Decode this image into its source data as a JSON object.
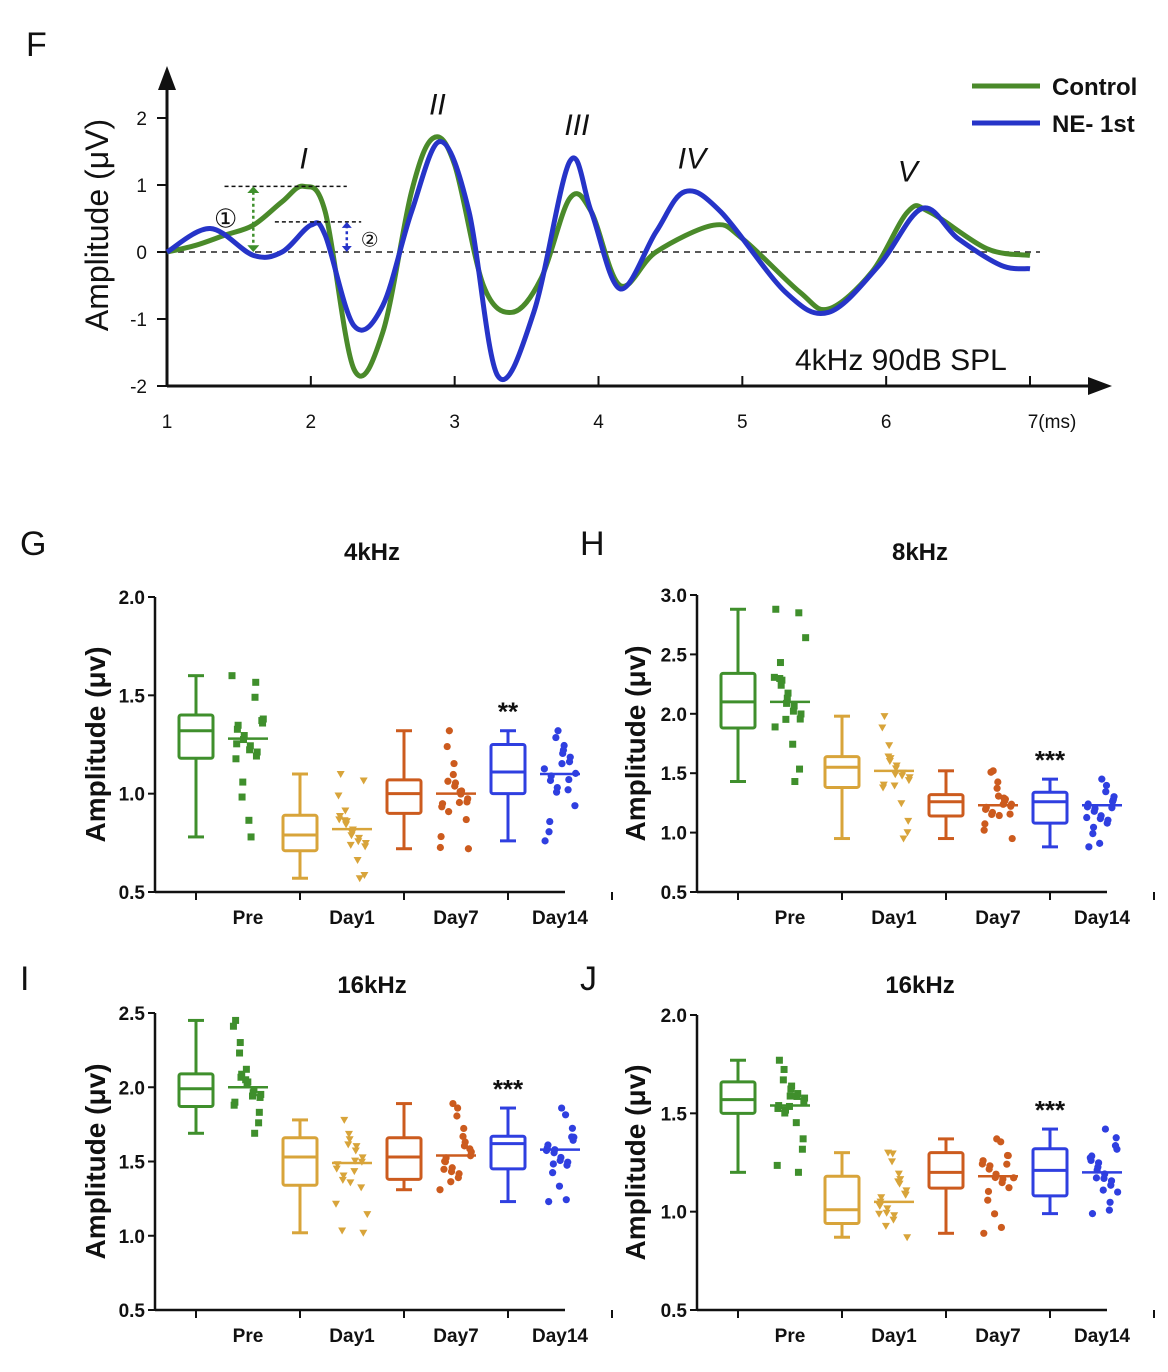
{
  "waveform": {
    "panel_letter": "F",
    "ylabel": "Amplitude (μV)",
    "x_ticks": [
      "1",
      "2",
      "3",
      "4",
      "5",
      "6",
      "7(ms)"
    ],
    "y_ticks": [
      "2",
      "1",
      "0",
      "-1",
      "-2"
    ],
    "condition_label": "4kHz  90dB SPL",
    "wave_labels": [
      "I",
      "II",
      "III",
      "IV",
      "V"
    ],
    "marker_1": "①",
    "marker_2": "②",
    "legend": [
      {
        "name": "Control",
        "color": "#4a8a2a"
      },
      {
        "name": "NE- 1st",
        "color": "#2634c8"
      }
    ],
    "chart_data": {
      "type": "line",
      "xlim": [
        1,
        7
      ],
      "ylim": [
        -2,
        2.5
      ],
      "series": [
        {
          "name": "Control",
          "color": "#4a8a2a",
          "points": [
            [
              1.0,
              0.0
            ],
            [
              1.2,
              0.1
            ],
            [
              1.4,
              0.25
            ],
            [
              1.6,
              0.4
            ],
            [
              1.8,
              0.75
            ],
            [
              1.95,
              0.98
            ],
            [
              2.1,
              0.6
            ],
            [
              2.3,
              -1.75
            ],
            [
              2.5,
              -1.2
            ],
            [
              2.7,
              0.9
            ],
            [
              2.85,
              1.7
            ],
            [
              3.0,
              1.3
            ],
            [
              3.2,
              -0.5
            ],
            [
              3.4,
              -0.9
            ],
            [
              3.6,
              -0.4
            ],
            [
              3.8,
              0.8
            ],
            [
              3.95,
              0.6
            ],
            [
              4.15,
              -0.5
            ],
            [
              4.4,
              0.0
            ],
            [
              4.8,
              0.4
            ],
            [
              5.0,
              0.2
            ],
            [
              5.4,
              -0.6
            ],
            [
              5.6,
              -0.85
            ],
            [
              5.9,
              -0.3
            ],
            [
              6.15,
              0.6
            ],
            [
              6.3,
              0.6
            ],
            [
              6.7,
              0.05
            ],
            [
              7.0,
              -0.05
            ]
          ]
        },
        {
          "name": "NE- 1st",
          "color": "#2634c8",
          "points": [
            [
              1.0,
              0.0
            ],
            [
              1.3,
              0.35
            ],
            [
              1.6,
              -0.05
            ],
            [
              1.8,
              0.0
            ],
            [
              2.0,
              0.4
            ],
            [
              2.1,
              0.25
            ],
            [
              2.3,
              -1.1
            ],
            [
              2.5,
              -0.8
            ],
            [
              2.7,
              0.6
            ],
            [
              2.9,
              1.65
            ],
            [
              3.1,
              0.6
            ],
            [
              3.3,
              -1.85
            ],
            [
              3.55,
              -0.9
            ],
            [
              3.8,
              1.35
            ],
            [
              3.95,
              0.6
            ],
            [
              4.15,
              -0.55
            ],
            [
              4.4,
              0.3
            ],
            [
              4.6,
              0.9
            ],
            [
              4.85,
              0.6
            ],
            [
              5.3,
              -0.6
            ],
            [
              5.6,
              -0.9
            ],
            [
              5.95,
              -0.2
            ],
            [
              6.25,
              0.65
            ],
            [
              6.5,
              0.2
            ],
            [
              6.8,
              -0.2
            ],
            [
              7.0,
              -0.25
            ]
          ]
        }
      ]
    }
  },
  "box_plots": [
    {
      "panel_letter": "G",
      "title": "4kHz",
      "ylabel": "Amplitude (μv)",
      "ylim": [
        0.5,
        2.0
      ],
      "y_ticks": [
        "2.0",
        "1.5",
        "1.0",
        "0.5"
      ],
      "group_labels": [
        "Pre",
        "Day1",
        "Day7",
        "Day14"
      ],
      "significance": "**",
      "chart_data": {
        "type": "box",
        "groups": [
          {
            "name": "Pre",
            "color": "#3f8f2c",
            "min": 0.78,
            "q1": 1.18,
            "median": 1.32,
            "q3": 1.4,
            "max": 1.6,
            "mean": 1.28
          },
          {
            "name": "Day1",
            "color": "#d8a43a",
            "min": 0.57,
            "q1": 0.71,
            "median": 0.79,
            "q3": 0.89,
            "max": 1.1,
            "mean": 0.82
          },
          {
            "name": "Day7",
            "color": "#cc5b1e",
            "min": 0.72,
            "q1": 0.9,
            "median": 1.0,
            "q3": 1.07,
            "max": 1.32,
            "mean": 1.0
          },
          {
            "name": "Day14",
            "color": "#2f3fe0",
            "min": 0.76,
            "q1": 1.0,
            "median": 1.11,
            "q3": 1.25,
            "max": 1.32,
            "mean": 1.1
          }
        ]
      }
    },
    {
      "panel_letter": "H",
      "title": "8kHz",
      "ylabel": "Amplitude (μv)",
      "ylim": [
        0.5,
        3.0
      ],
      "y_ticks": [
        "3.0",
        "2.5",
        "2.0",
        "1.5",
        "1.0",
        "0.5"
      ],
      "group_labels": [
        "Pre",
        "Day1",
        "Day7",
        "Day14"
      ],
      "significance": "***",
      "chart_data": {
        "type": "box",
        "groups": [
          {
            "name": "Pre",
            "color": "#3f8f2c",
            "min": 1.43,
            "q1": 1.88,
            "median": 2.1,
            "q3": 2.34,
            "max": 2.88,
            "mean": 2.1
          },
          {
            "name": "Day1",
            "color": "#d8a43a",
            "min": 0.95,
            "q1": 1.38,
            "median": 1.55,
            "q3": 1.64,
            "max": 1.98,
            "mean": 1.52
          },
          {
            "name": "Day7",
            "color": "#cc5b1e",
            "min": 0.95,
            "q1": 1.14,
            "median": 1.26,
            "q3": 1.32,
            "max": 1.52,
            "mean": 1.23
          },
          {
            "name": "Day14",
            "color": "#2f3fe0",
            "min": 0.88,
            "q1": 1.08,
            "median": 1.26,
            "q3": 1.34,
            "max": 1.45,
            "mean": 1.23
          }
        ]
      }
    },
    {
      "panel_letter": "I",
      "title": "16kHz",
      "ylabel": "Amplitude (μv)",
      "ylim": [
        0.5,
        2.5
      ],
      "y_ticks": [
        "2.5",
        "2.0",
        "1.5",
        "1.0",
        "0.5"
      ],
      "group_labels": [
        "Pre",
        "Day1",
        "Day7",
        "Day14"
      ],
      "significance": "***",
      "chart_data": {
        "type": "box",
        "groups": [
          {
            "name": "Pre",
            "color": "#3f8f2c",
            "min": 1.69,
            "q1": 1.87,
            "median": 1.99,
            "q3": 2.09,
            "max": 2.45,
            "mean": 2.0
          },
          {
            "name": "Day1",
            "color": "#d8a43a",
            "min": 1.02,
            "q1": 1.34,
            "median": 1.53,
            "q3": 1.66,
            "max": 1.78,
            "mean": 1.49
          },
          {
            "name": "Day7",
            "color": "#cc5b1e",
            "min": 1.31,
            "q1": 1.38,
            "median": 1.53,
            "q3": 1.66,
            "max": 1.89,
            "mean": 1.54
          },
          {
            "name": "Day14",
            "color": "#2f3fe0",
            "min": 1.23,
            "q1": 1.45,
            "median": 1.62,
            "q3": 1.67,
            "max": 1.86,
            "mean": 1.58
          }
        ]
      }
    },
    {
      "panel_letter": "J",
      "title": "16kHz",
      "ylabel": "Amplitude (μv)",
      "ylim": [
        0.5,
        2.0
      ],
      "y_ticks": [
        "2.0",
        "1.5",
        "1.0",
        "0.5"
      ],
      "group_labels": [
        "Pre",
        "Day1",
        "Day7",
        "Day14"
      ],
      "significance": "***",
      "chart_data": {
        "type": "box",
        "groups": [
          {
            "name": "Pre",
            "color": "#3f8f2c",
            "min": 1.2,
            "q1": 1.5,
            "median": 1.57,
            "q3": 1.66,
            "max": 1.77,
            "mean": 1.54
          },
          {
            "name": "Day1",
            "color": "#d8a43a",
            "min": 0.87,
            "q1": 0.94,
            "median": 1.01,
            "q3": 1.18,
            "max": 1.3,
            "mean": 1.05
          },
          {
            "name": "Day7",
            "color": "#cc5b1e",
            "min": 0.89,
            "q1": 1.12,
            "median": 1.2,
            "q3": 1.3,
            "max": 1.37,
            "mean": 1.18
          },
          {
            "name": "Day14",
            "color": "#2f3fe0",
            "min": 0.99,
            "q1": 1.08,
            "median": 1.21,
            "q3": 1.32,
            "max": 1.42,
            "mean": 1.2
          }
        ]
      }
    }
  ]
}
